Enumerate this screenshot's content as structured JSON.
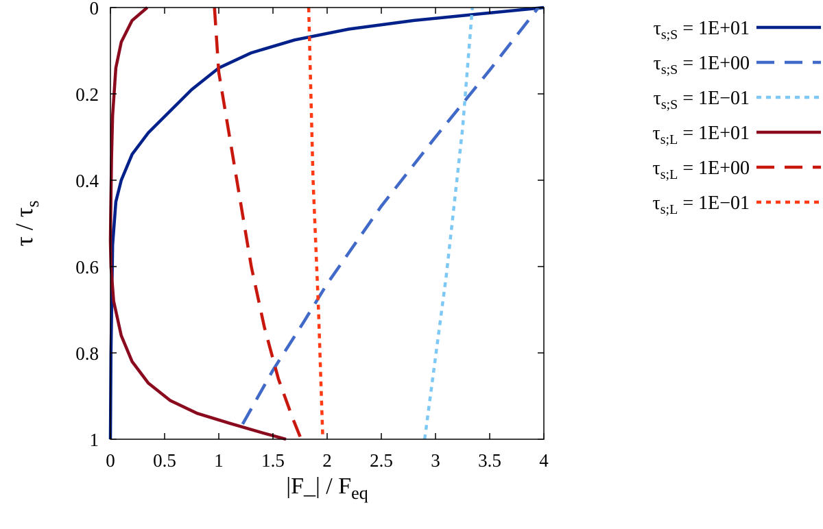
{
  "chart_data": {
    "type": "line",
    "xlabel": {
      "main": "|F_| / F",
      "sub": "eq"
    },
    "ylabel": {
      "main": "τ / τ",
      "sub": "s"
    },
    "xlim": [
      0,
      4
    ],
    "ylim": [
      1,
      0
    ],
    "y_inverted": true,
    "x_ticks": [
      0,
      0.5,
      1,
      1.5,
      2,
      2.5,
      3,
      3.5,
      4
    ],
    "x_tick_labels": [
      "0",
      "0.5",
      "1",
      "1.5",
      "2",
      "2.5",
      "3",
      "3.5",
      "4"
    ],
    "y_ticks": [
      0,
      0.2,
      0.4,
      0.6,
      0.8,
      1
    ],
    "y_tick_labels": [
      "0",
      "0.2",
      "0.4",
      "0.6",
      "0.8",
      "1"
    ],
    "grid": false,
    "legend_position": "outside-right",
    "series": [
      {
        "name": "τs;S = 1E+01",
        "label": {
          "sym": "τ",
          "sub": "s;S",
          "rest": " = 1E+01"
        },
        "color": "#00208a",
        "dash": "solid",
        "points": [
          [
            0,
            1
          ],
          [
            0.005,
            0.8
          ],
          [
            0.02,
            0.55
          ],
          [
            0.05,
            0.45
          ],
          [
            0.1,
            0.4
          ],
          [
            0.2,
            0.34
          ],
          [
            0.35,
            0.29
          ],
          [
            0.55,
            0.24
          ],
          [
            0.75,
            0.19
          ],
          [
            1,
            0.14
          ],
          [
            1.3,
            0.105
          ],
          [
            1.7,
            0.075
          ],
          [
            2.2,
            0.05
          ],
          [
            2.8,
            0.03
          ],
          [
            3.4,
            0.015
          ],
          [
            4,
            0
          ]
        ]
      },
      {
        "name": "τs;S = 1E+00",
        "label": {
          "sym": "τ",
          "sub": "s;S",
          "rest": " = 1E+00"
        },
        "color": "#4169c8",
        "dash": "dashed",
        "points": [
          [
            1.22,
            0.965
          ],
          [
            1.5,
            0.84
          ],
          [
            1.78,
            0.73
          ],
          [
            2,
            0.64
          ],
          [
            2.5,
            0.46
          ],
          [
            3,
            0.3
          ],
          [
            3.5,
            0.145
          ],
          [
            3.95,
            0
          ]
        ]
      },
      {
        "name": "τs;S = 1E−01",
        "label": {
          "sym": "τ",
          "sub": "s;S",
          "rest": " = 1E−01"
        },
        "color": "#7ec8f5",
        "dash": "dotted",
        "points": [
          [
            2.9,
            1
          ],
          [
            3.1,
            0.62
          ],
          [
            3.25,
            0.28
          ],
          [
            3.34,
            0
          ]
        ]
      },
      {
        "name": "τs;L = 1E+01",
        "label": {
          "sym": "τ",
          "sub": "s;L",
          "rest": " = 1E+01"
        },
        "color": "#8a0a1e",
        "dash": "solid",
        "points": [
          [
            0.34,
            0
          ],
          [
            0.2,
            0.03
          ],
          [
            0.1,
            0.08
          ],
          [
            0.05,
            0.14
          ],
          [
            0.02,
            0.25
          ],
          [
            0.01,
            0.35
          ],
          [
            0.003,
            0.47
          ],
          [
            0,
            0.54
          ],
          [
            0.005,
            0.6
          ],
          [
            0.03,
            0.68
          ],
          [
            0.1,
            0.76
          ],
          [
            0.2,
            0.82
          ],
          [
            0.35,
            0.87
          ],
          [
            0.55,
            0.91
          ],
          [
            0.8,
            0.94
          ],
          [
            1.1,
            0.963
          ],
          [
            1.4,
            0.985
          ],
          [
            1.62,
            1
          ]
        ]
      },
      {
        "name": "τs;L = 1E+00",
        "label": {
          "sym": "τ",
          "sub": "s;L",
          "rest": " = 1E+00"
        },
        "color": "#c8180e",
        "dash": "dashed",
        "points": [
          [
            0.96,
            0
          ],
          [
            1,
            0.15
          ],
          [
            1.1,
            0.3
          ],
          [
            1.2,
            0.45
          ],
          [
            1.3,
            0.6
          ],
          [
            1.42,
            0.74
          ],
          [
            1.55,
            0.86
          ],
          [
            1.68,
            0.95
          ],
          [
            1.76,
            1
          ]
        ]
      },
      {
        "name": "τs;L = 1E−01",
        "label": {
          "sym": "τ",
          "sub": "s;L",
          "rest": " = 1E−01"
        },
        "color": "#ff3a14",
        "dash": "dotted",
        "points": [
          [
            1.83,
            0
          ],
          [
            1.87,
            0.4
          ],
          [
            1.92,
            0.7
          ],
          [
            1.96,
            1
          ]
        ]
      }
    ]
  }
}
